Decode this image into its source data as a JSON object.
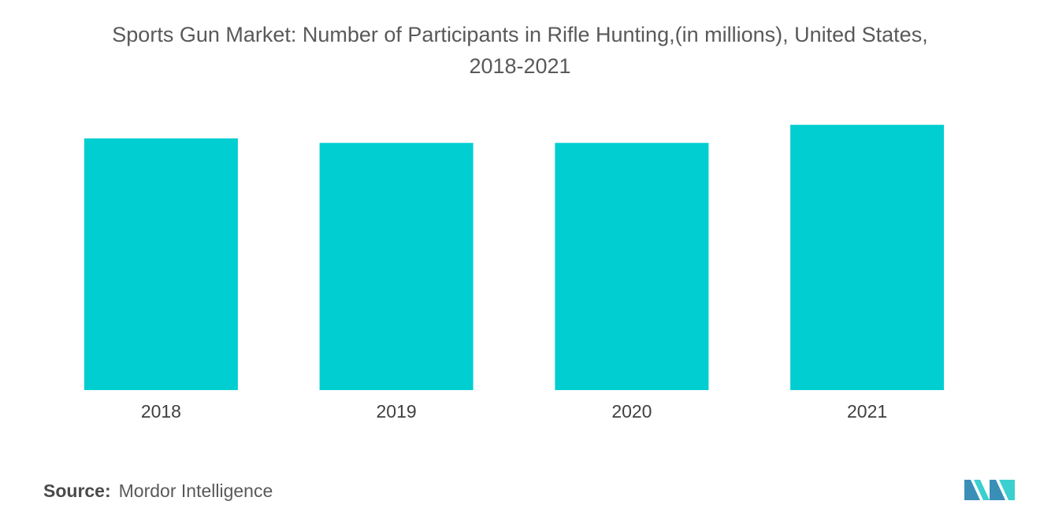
{
  "chart_data": {
    "type": "bar",
    "title_lines": [
      "Sports Gun Market: Number of Participants in Rifle Hunting,(in millions), United States,",
      "2018-2021"
    ],
    "categories": [
      "2018",
      "2019",
      "2020",
      "2021"
    ],
    "values": [
      11.1,
      10.9,
      10.9,
      11.7
    ],
    "ylim": [
      0,
      12
    ],
    "xlabel": "",
    "ylabel": "",
    "grid": false,
    "legend": "none",
    "bar_color": "#00CED1"
  },
  "footer": {
    "source_label": "Source:",
    "source_value": "Mordor Intelligence"
  },
  "logo": {
    "icon": "mordor-intelligence-logo-icon",
    "colors": [
      "#3a8fb7",
      "#3ccfcf"
    ]
  }
}
